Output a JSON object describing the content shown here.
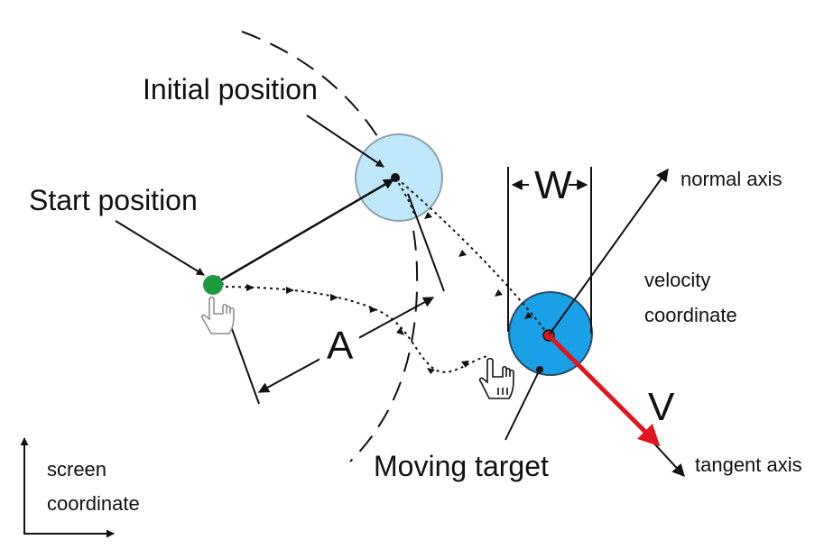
{
  "labels": {
    "initial_position": "Initial position",
    "start_position": "Start position",
    "width_symbol": "W",
    "normal_axis": "normal axis",
    "velocity_coordinate_line1": "velocity",
    "velocity_coordinate_line2": "coordinate",
    "amplitude_symbol": "A",
    "velocity_symbol": "V",
    "moving_target": "Moving target",
    "tangent_axis": "tangent axis",
    "screen_coordinate_line1": "screen",
    "screen_coordinate_line2": "coordinate"
  },
  "colors": {
    "initial_target_fill": "#bfe8fb",
    "initial_target_stroke": "#8aa0ad",
    "moving_target_fill": "#1aa0e6",
    "moving_target_stroke": "#2a4a60",
    "start_point": "#1e9a3e",
    "velocity_vector": "#e0151d",
    "ink": "#111111"
  },
  "icons": {
    "start_cursor": "hand-pointer-icon",
    "end_cursor": "hand-pointer-icon"
  }
}
